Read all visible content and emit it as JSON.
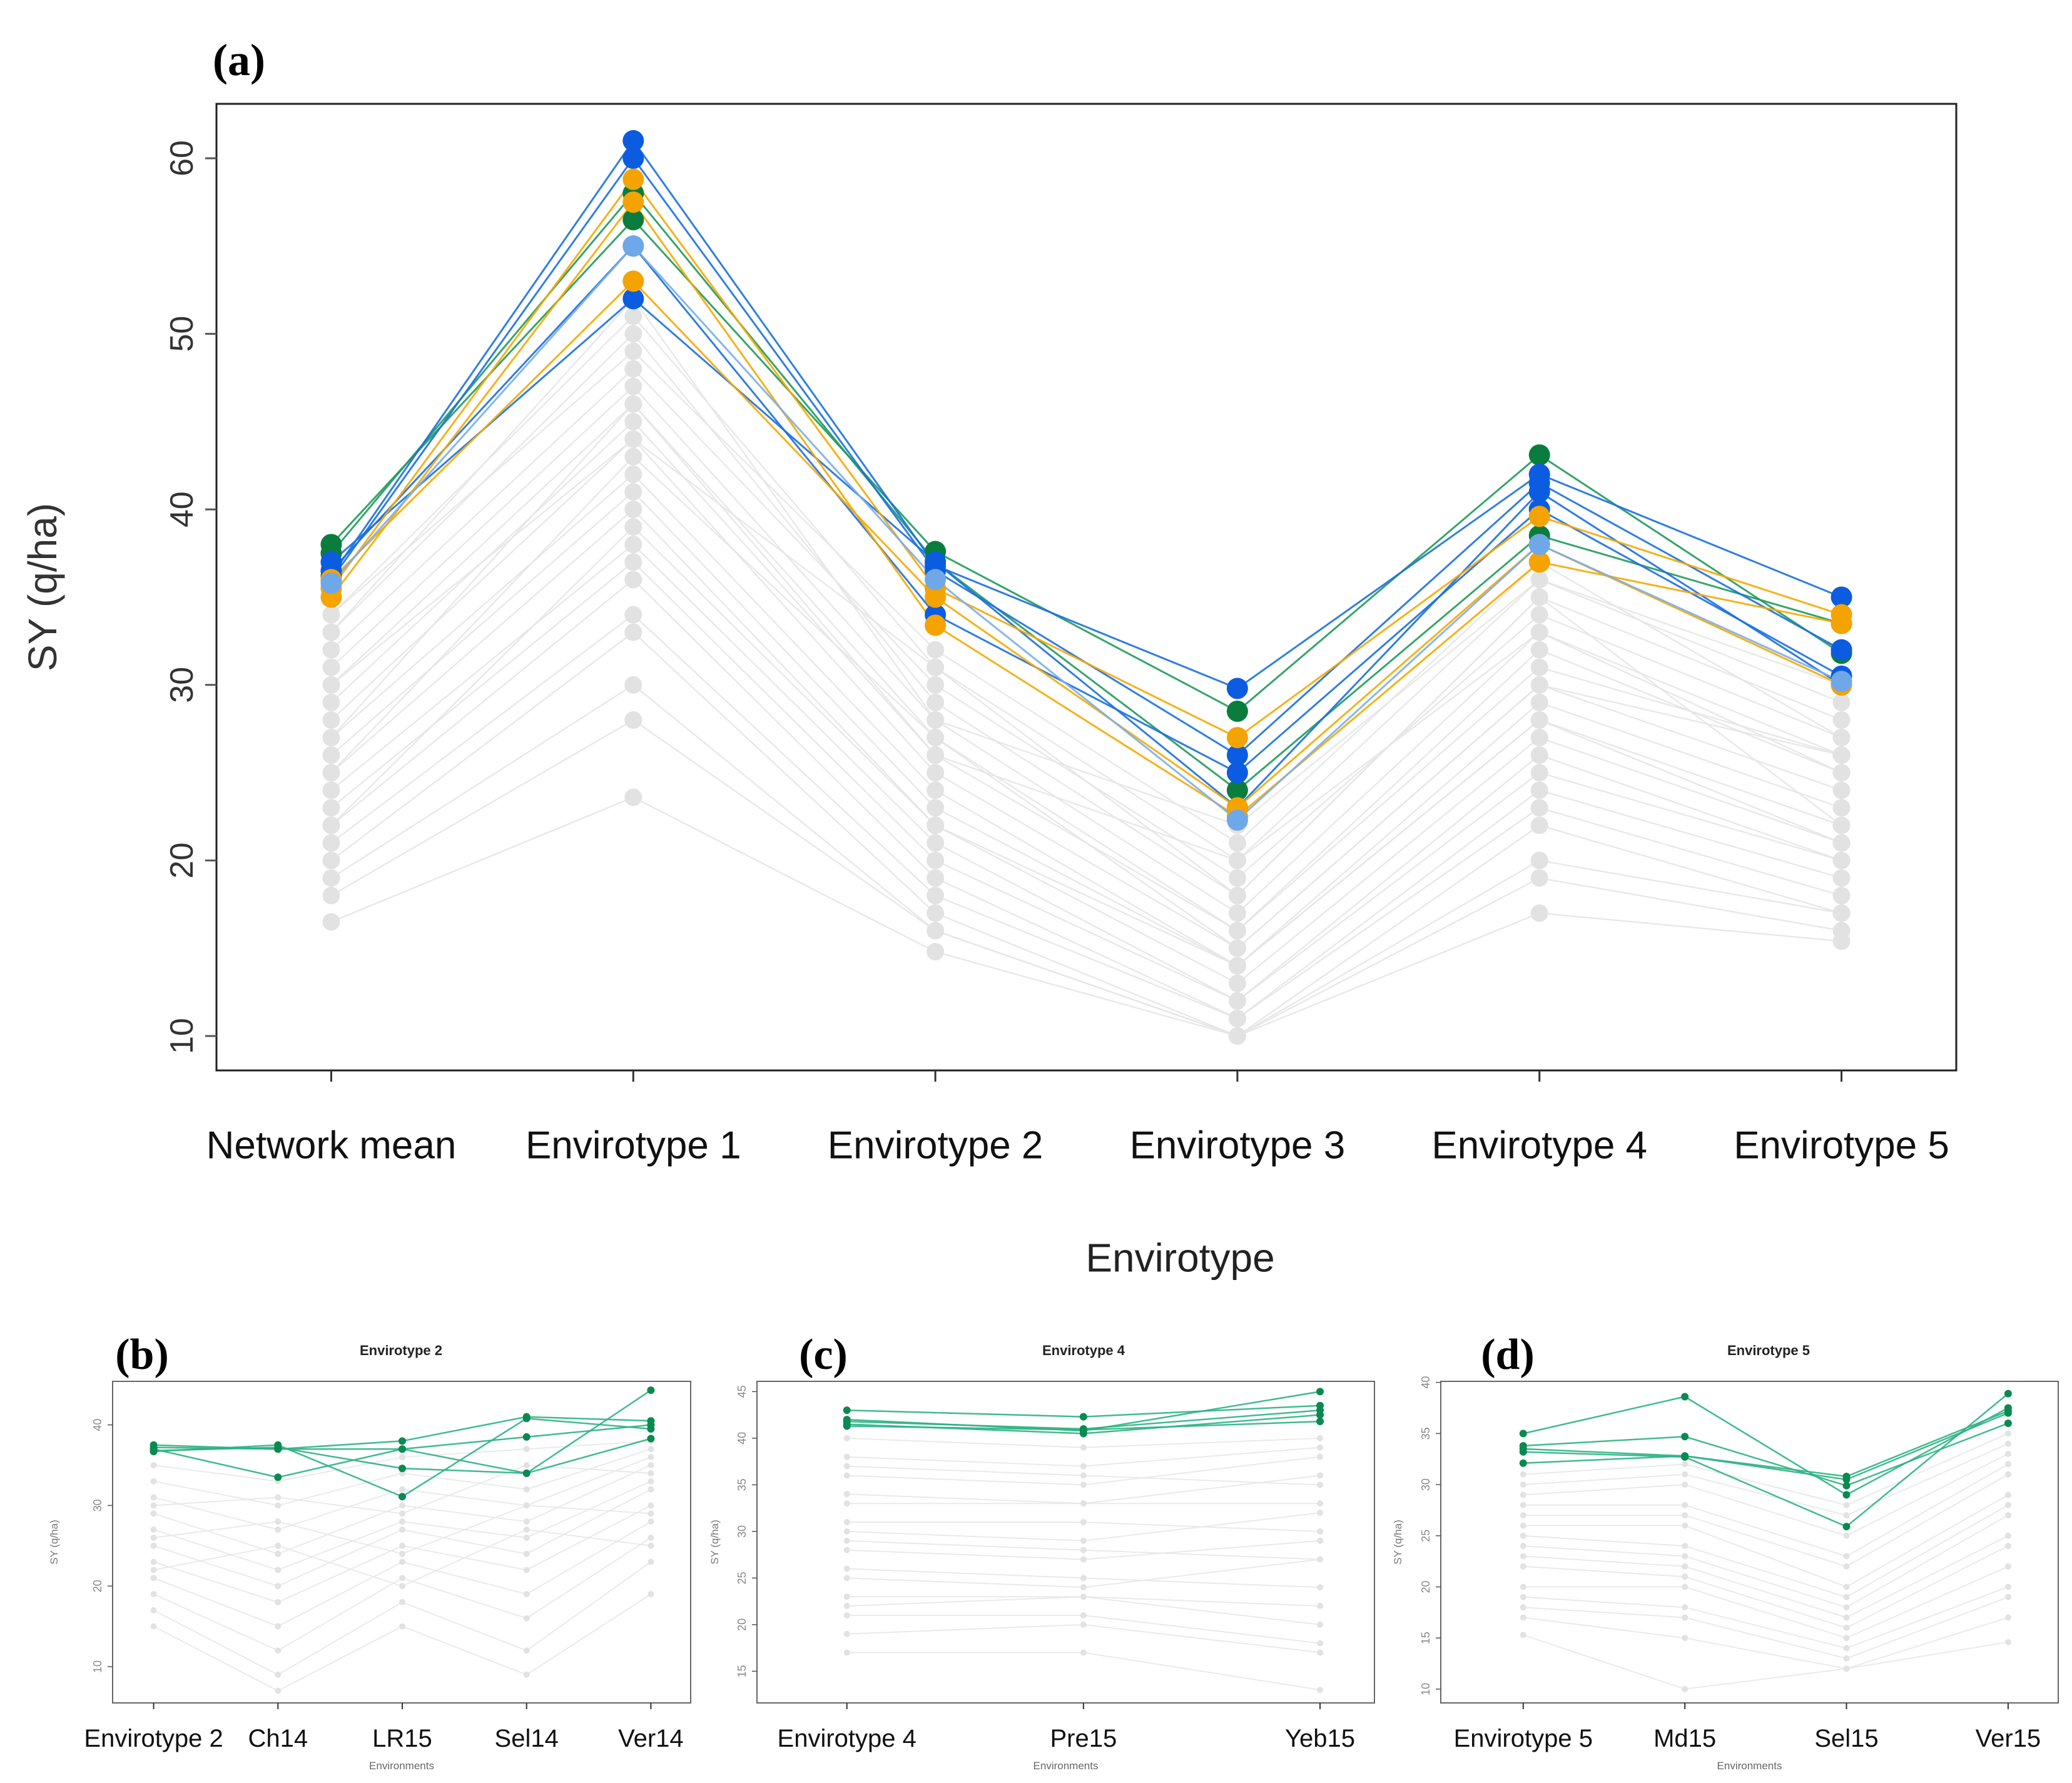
{
  "chart_data": [
    {
      "panel_label": "(a)",
      "type": "line",
      "title": "",
      "xlabel": "Envirotype",
      "ylabel": "SY (q/ha)",
      "categories": [
        "Network mean",
        "Envirotype 1",
        "Envirotype 2",
        "Envirotype 3",
        "Envirotype 4",
        "Envirotype 5"
      ],
      "yticks": [
        10,
        20,
        30,
        40,
        50,
        60
      ],
      "ylim": [
        8.04,
        63.1
      ],
      "grid": false,
      "background_color": "#e6e6e6",
      "background_series": [
        [
          34,
          51,
          31,
          20,
          36,
          29
        ],
        [
          33,
          50,
          29,
          18,
          35,
          28
        ],
        [
          32,
          48,
          30,
          19,
          34,
          27
        ],
        [
          31,
          47,
          28,
          17,
          33,
          26
        ],
        [
          30,
          46,
          27,
          16,
          32,
          25
        ],
        [
          29,
          45,
          26,
          16,
          31,
          26
        ],
        [
          28,
          44,
          25,
          15,
          30,
          24
        ],
        [
          27,
          42,
          24,
          14,
          29,
          23
        ],
        [
          26,
          41,
          23,
          14,
          28,
          22
        ],
        [
          25,
          40,
          22,
          13,
          27,
          21
        ],
        [
          24,
          38,
          21,
          12,
          26,
          20
        ],
        [
          23,
          37,
          20,
          12,
          25,
          20
        ],
        [
          22,
          36,
          19,
          11,
          24,
          19
        ],
        [
          21,
          34,
          18,
          11,
          23,
          18
        ],
        [
          20,
          33,
          17,
          10,
          22,
          17
        ],
        [
          19,
          30,
          16,
          10,
          20,
          17
        ],
        [
          18,
          28,
          16,
          10,
          19,
          16
        ],
        [
          16.5,
          23.6,
          14.8,
          10,
          17,
          15.4
        ],
        [
          34,
          49,
          32,
          21,
          37,
          27
        ],
        [
          33,
          52,
          28,
          22,
          36,
          30
        ],
        [
          30,
          44,
          31,
          18,
          35,
          22
        ],
        [
          27,
          46,
          26,
          20,
          33,
          25
        ],
        [
          25,
          43,
          27,
          15,
          30,
          26
        ],
        [
          22,
          39,
          22,
          14,
          28,
          21
        ]
      ],
      "series": [
        {
          "color": "#1f9a5a",
          "point_color": "#0a7d3e",
          "values": [
            38,
            56.5,
            37.6,
            28.5,
            43.1,
            31.8
          ]
        },
        {
          "color": "#1f9a5a",
          "point_color": "#0a7d3e",
          "values": [
            37.5,
            58,
            37,
            24,
            38.5,
            33.5
          ]
        },
        {
          "color": "#1a6fe0",
          "point_color": "#0b5ce0",
          "values": [
            36.2,
            61,
            36.8,
            29.8,
            42,
            35
          ]
        },
        {
          "color": "#1a6fe0",
          "point_color": "#0b5ce0",
          "values": [
            36,
            60,
            36.5,
            26,
            41.5,
            32
          ]
        },
        {
          "color": "#1a6fe0",
          "point_color": "#0b5ce0",
          "values": [
            37,
            52,
            37,
            23,
            41,
            30
          ]
        },
        {
          "color": "#1a6fe0",
          "point_color": "#0b5ce0",
          "values": [
            36.5,
            55,
            34,
            25,
            40,
            30.5
          ]
        },
        {
          "color": "#f5a800",
          "point_color": "#f5a300",
          "values": [
            35.5,
            58.8,
            35.5,
            27,
            39.6,
            34
          ]
        },
        {
          "color": "#f5a800",
          "point_color": "#f5a300",
          "values": [
            35,
            57.5,
            33.4,
            22.5,
            37,
            33.5
          ]
        },
        {
          "color": "#f5a800",
          "point_color": "#f5a300",
          "values": [
            36,
            53,
            35,
            23,
            38,
            30
          ]
        },
        {
          "color": "#7aaee8",
          "point_color": "#6fa8e8",
          "values": [
            35.8,
            55,
            36,
            22.3,
            38,
            30.2
          ]
        }
      ]
    },
    {
      "panel_label": "(b)",
      "type": "line",
      "title": "Envirotype 2",
      "xlabel": "Environments",
      "ylabel": "SY (q/ha)",
      "categories": [
        "Envirotype 2",
        "Ch14",
        "LR15",
        "Sel14",
        "Ver14"
      ],
      "yticks": [
        10,
        20,
        30,
        40
      ],
      "ylim": [
        5.5,
        45.4
      ],
      "background_color": "#e8e8e8",
      "background_series": [
        [
          35,
          33,
          36,
          37,
          38
        ],
        [
          33,
          30,
          34,
          32,
          37
        ],
        [
          31,
          27,
          32,
          30,
          36
        ],
        [
          29,
          24,
          30,
          28,
          35
        ],
        [
          27,
          22,
          28,
          26,
          33
        ],
        [
          25,
          20,
          27,
          24,
          32
        ],
        [
          23,
          18,
          25,
          22,
          30
        ],
        [
          21,
          15,
          23,
          19,
          28
        ],
        [
          19,
          12,
          21,
          16,
          26
        ],
        [
          17,
          9,
          18,
          12,
          23
        ],
        [
          15,
          7,
          15,
          9,
          19
        ],
        [
          30,
          31,
          29,
          35,
          34
        ],
        [
          26,
          28,
          24,
          30,
          29
        ],
        [
          22,
          25,
          20,
          27,
          25
        ]
      ],
      "series": [
        {
          "color": "#2bb383",
          "point_color": "#0a8a50",
          "values": [
            37.5,
            37,
            38,
            41,
            40.5
          ]
        },
        {
          "color": "#2bb383",
          "point_color": "#0a8a50",
          "values": [
            37,
            33.5,
            37,
            38.5,
            40
          ]
        },
        {
          "color": "#2bb383",
          "point_color": "#0a8a50",
          "values": [
            36.8,
            37.2,
            34.6,
            34,
            44.3
          ]
        },
        {
          "color": "#2bb383",
          "point_color": "#0a8a50",
          "values": [
            36.7,
            37.5,
            31.1,
            40.8,
            39.5
          ]
        },
        {
          "color": "#2bb383",
          "point_color": "#0a8a50",
          "values": [
            37.2,
            37,
            37,
            34,
            38.3
          ]
        }
      ]
    },
    {
      "panel_label": "(c)",
      "type": "line",
      "title": "Envirotype 4",
      "xlabel": "Environments",
      "ylabel": "SY (q/ha)",
      "categories": [
        "Envirotype 4",
        "Pre15",
        "Yeb15"
      ],
      "yticks": [
        15,
        20,
        25,
        30,
        35,
        40,
        45
      ],
      "ylim": [
        11.6,
        46.1
      ],
      "background_color": "#e8e8e8",
      "background_series": [
        [
          40,
          39,
          40
        ],
        [
          38,
          37,
          39
        ],
        [
          37,
          36,
          35
        ],
        [
          36,
          35,
          38
        ],
        [
          34,
          33,
          33
        ],
        [
          33,
          33,
          36
        ],
        [
          31,
          31,
          30
        ],
        [
          30,
          29,
          32
        ],
        [
          29,
          28,
          27
        ],
        [
          28,
          27,
          29
        ],
        [
          26,
          25,
          24
        ],
        [
          25,
          24,
          27
        ],
        [
          23,
          23,
          20
        ],
        [
          22,
          23,
          22
        ],
        [
          21,
          21,
          18
        ],
        [
          19,
          20,
          17
        ],
        [
          17,
          17,
          13
        ]
      ],
      "series": [
        {
          "color": "#2bb383",
          "point_color": "#0a8a50",
          "values": [
            43,
            42.3,
            43.5
          ]
        },
        {
          "color": "#2bb383",
          "point_color": "#0a8a50",
          "values": [
            42,
            40.8,
            45
          ]
        },
        {
          "color": "#2bb383",
          "point_color": "#0a8a50",
          "values": [
            41.8,
            41,
            43
          ]
        },
        {
          "color": "#2bb383",
          "point_color": "#0a8a50",
          "values": [
            41.5,
            40.5,
            42.5
          ]
        },
        {
          "color": "#2bb383",
          "point_color": "#0a8a50",
          "values": [
            41.3,
            40.9,
            41.8
          ]
        }
      ]
    },
    {
      "panel_label": "(d)",
      "type": "line",
      "title": "Envirotype 5",
      "xlabel": "Environments",
      "ylabel": "SY (q/ha)",
      "categories": [
        "Envirotype 5",
        "Md15",
        "Sel15",
        "Ver15"
      ],
      "yticks": [
        10,
        15,
        20,
        25,
        30,
        35,
        40
      ],
      "ylim": [
        8.65,
        40.1
      ],
      "background_color": "#e8e8e8",
      "background_series": [
        [
          31,
          32,
          28,
          35
        ],
        [
          30,
          31,
          27,
          34
        ],
        [
          29,
          30,
          25,
          33
        ],
        [
          28,
          28,
          23,
          32
        ],
        [
          27,
          27,
          22,
          31
        ],
        [
          26,
          26,
          20,
          29
        ],
        [
          25,
          24,
          19,
          28
        ],
        [
          24,
          23,
          18,
          27
        ],
        [
          23,
          22,
          17,
          25
        ],
        [
          22,
          21,
          16,
          24
        ],
        [
          20,
          20,
          15,
          22
        ],
        [
          19,
          18,
          14,
          20
        ],
        [
          18,
          17,
          13,
          19
        ],
        [
          17,
          15,
          12,
          17
        ],
        [
          15.3,
          10,
          12,
          14.6
        ]
      ],
      "series": [
        {
          "color": "#2bb383",
          "point_color": "#0a8a50",
          "values": [
            35,
            38.6,
            29,
            37.5
          ]
        },
        {
          "color": "#2bb383",
          "point_color": "#0a8a50",
          "values": [
            33.8,
            34.7,
            29.9,
            36
          ]
        },
        {
          "color": "#2bb383",
          "point_color": "#0a8a50",
          "values": [
            33.5,
            32.8,
            30.8,
            37.2
          ]
        },
        {
          "color": "#2bb383",
          "point_color": "#0a8a50",
          "values": [
            33.2,
            32.7,
            25.9,
            38.9
          ]
        },
        {
          "color": "#2bb383",
          "point_color": "#0a8a50",
          "values": [
            32.1,
            32.8,
            30.5,
            37
          ]
        }
      ]
    }
  ]
}
